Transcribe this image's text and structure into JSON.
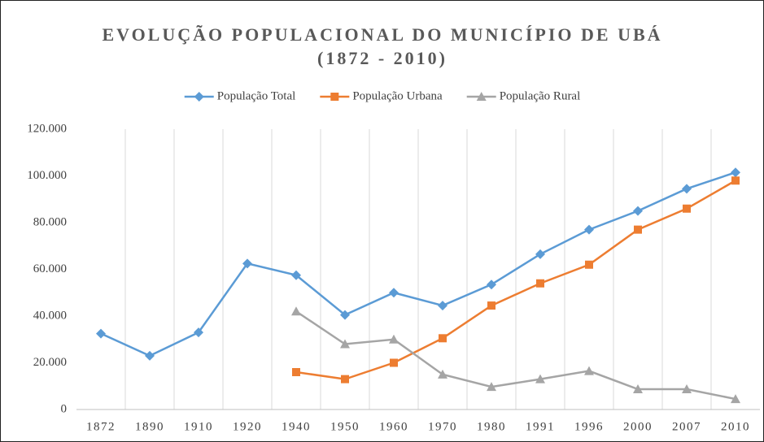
{
  "chart_data": {
    "type": "line",
    "title": "EVOLUÇÃO POPULACIONAL DO MUNICÍPIO DE UBÁ",
    "subtitle": "(1872 - 2010)",
    "categories": [
      "1872",
      "1890",
      "1910",
      "1920",
      "1940",
      "1950",
      "1960",
      "1970",
      "1980",
      "1991",
      "1996",
      "2000",
      "2007",
      "2010"
    ],
    "series": [
      {
        "name": "População Total",
        "color": "#5b9bd5",
        "marker": "diamond",
        "values": [
          32500,
          23000,
          33000,
          62500,
          57500,
          40500,
          50000,
          44500,
          53500,
          66500,
          77000,
          85000,
          94500,
          101500
        ]
      },
      {
        "name": "População Urbana",
        "color": "#ed7d31",
        "marker": "square",
        "values": [
          null,
          null,
          null,
          null,
          16000,
          13000,
          20000,
          30500,
          44500,
          54000,
          62000,
          77000,
          86000,
          98000
        ]
      },
      {
        "name": "População Rural",
        "color": "#a5a5a5",
        "marker": "triangle",
        "values": [
          null,
          null,
          null,
          null,
          42000,
          28000,
          30000,
          15000,
          9700,
          13000,
          16500,
          8700,
          8700,
          4500
        ]
      }
    ],
    "ylim": [
      0,
      120000
    ],
    "yticks": [
      0,
      {
        "value": 20000,
        "label": "20.000"
      },
      {
        "value": 40000,
        "label": "40.000"
      },
      {
        "value": 60000,
        "label": "60.000"
      },
      {
        "value": 80000,
        "label": "80.000"
      },
      {
        "value": 100000,
        "label": "100.000"
      },
      {
        "value": 120000,
        "label": "120.000"
      }
    ],
    "grid": "vertical",
    "legend": "top"
  }
}
